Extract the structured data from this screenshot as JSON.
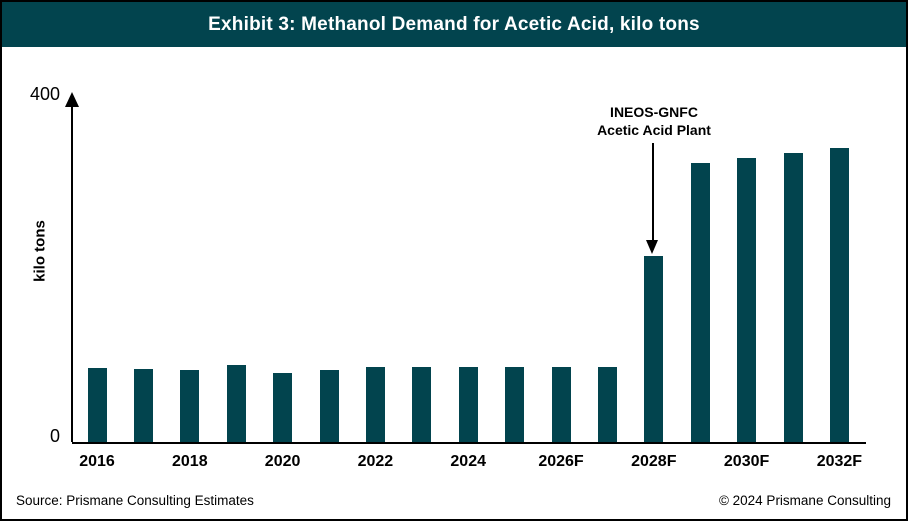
{
  "header": {
    "title": "Exhibit 3: Methanol Demand for Acetic Acid, kilo tons"
  },
  "footer": {
    "source": "Source: Prismane Consulting Estimates",
    "copyright": "© 2024 Prismane Consulting"
  },
  "colors": {
    "accent_teal": "#02444E",
    "axis_black": "#000000",
    "background": "#FFFFFF"
  },
  "chart_data": {
    "type": "bar",
    "title": "Exhibit 3: Methanol Demand for Acetic Acid, kilo tons",
    "xlabel": "",
    "ylabel": "kilo tons",
    "ylim": [
      0,
      400
    ],
    "ytick_labels": [
      "0",
      "400"
    ],
    "grid": false,
    "legend": false,
    "bar_color": "#02444E",
    "x_years": [
      2016,
      2017,
      2018,
      2019,
      2020,
      2021,
      2022,
      2023,
      2024,
      2025,
      2026,
      2027,
      2028,
      2029,
      2030,
      2031,
      2032
    ],
    "xtick_labels": [
      "2016",
      "2018",
      "2020",
      "2022",
      "2024",
      "2026F",
      "2028F",
      "2030F",
      "2032F"
    ],
    "xtick_every": 2,
    "values": [
      85,
      84,
      82,
      88,
      79,
      83,
      86,
      86,
      86,
      86,
      86,
      86,
      213,
      320,
      325,
      331,
      337
    ],
    "annotation": {
      "line1": "INEOS-GNFC",
      "line2": "Acetic Acid Plant",
      "target_label": "2028F"
    }
  }
}
